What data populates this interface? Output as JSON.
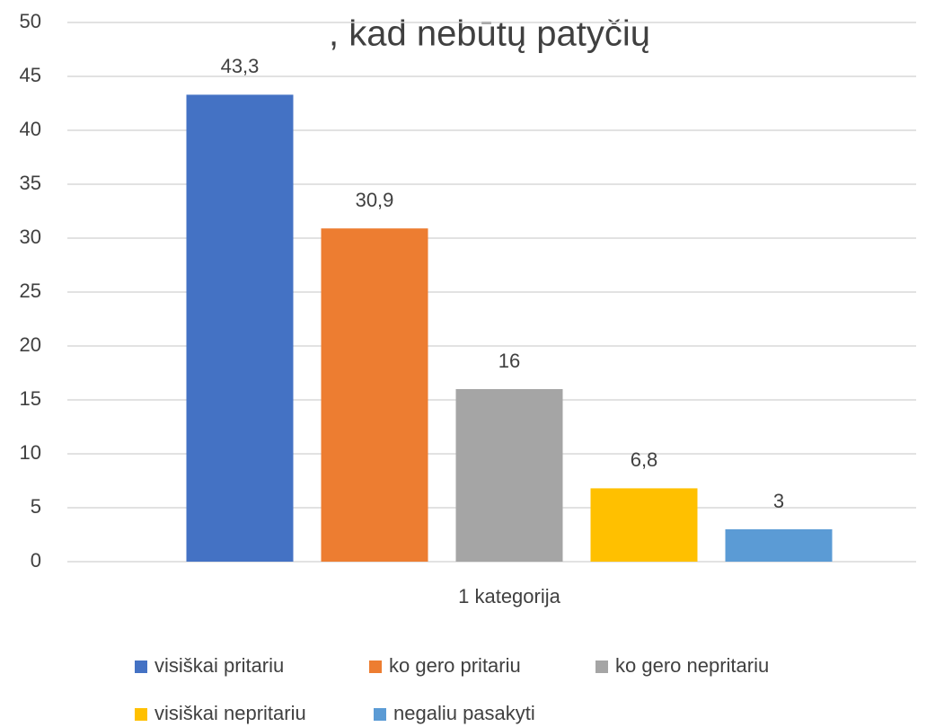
{
  "chart_data": {
    "type": "bar",
    "title": ", kad nebūtų patyčių",
    "categories": [
      "1 kategorija"
    ],
    "series": [
      {
        "name": "visiškai pritariu",
        "color": "#4472c4",
        "values": [
          43.3
        ],
        "value_labels": [
          "43,3"
        ]
      },
      {
        "name": "ko gero pritariu",
        "color": "#ed7d31",
        "values": [
          30.9
        ],
        "value_labels": [
          "30,9"
        ]
      },
      {
        "name": "ko gero nepritariu",
        "color": "#a5a5a5",
        "values": [
          16
        ]
      },
      {
        "name": "visiškai nepritariu",
        "color": "#ffc000",
        "values": [
          6.8
        ],
        "value_labels": [
          "6,8"
        ]
      },
      {
        "name": "negaliu pasakyti",
        "color": "#5b9bd5",
        "values": [
          3
        ]
      }
    ],
    "ylim": [
      0,
      50
    ],
    "yticks": [
      0,
      5,
      10,
      15,
      20,
      25,
      30,
      35,
      40,
      45,
      50
    ],
    "grid": true,
    "legend": "bottom"
  }
}
